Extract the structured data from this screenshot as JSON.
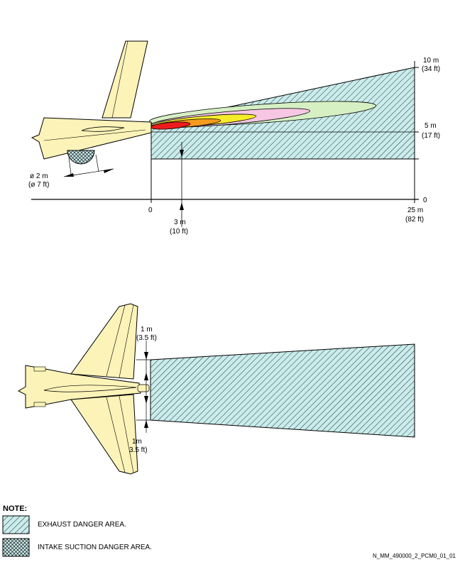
{
  "side_view": {
    "diameter_m": "ø 2 m",
    "diameter_ft": "(ø 7 ft)",
    "y_top_m": "10 m",
    "y_top_ft": "(34 ft)",
    "y_mid_m": "5 m",
    "y_mid_ft": "(17 ft)",
    "y_zero": "0",
    "x_zero": "0",
    "x_inner_m": "3 m",
    "x_inner_ft": "(10 ft)",
    "x_end_m": "25 m",
    "x_end_ft": "(82 ft)"
  },
  "top_view": {
    "upper_m": "1 m",
    "upper_ft": "(3.5 ft)",
    "lower_m": "1m",
    "lower_ft": "3.5 ft)"
  },
  "note": {
    "title": "NOTE:",
    "exhaust": "EXHAUST DANGER AREA.",
    "intake": "INTAKE SUCTION DANGER AREA."
  },
  "reference": "N_MM_490000_2_PCM0_01_01",
  "colors": {
    "aircraft": "#fbf3b8",
    "danger_fill": "#c9ecec",
    "plume_outer": "#d6f0c4",
    "plume_pink": "#f6c6e3",
    "plume_yellow": "#f5ec2a",
    "plume_orange": "#f49a1c",
    "plume_red": "#ee1c1c"
  }
}
